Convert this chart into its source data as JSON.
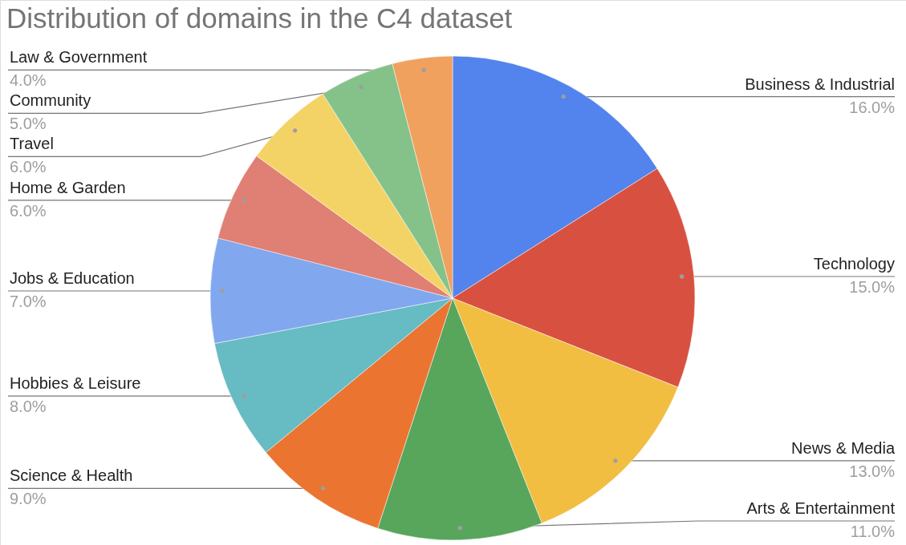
{
  "chart_data": {
    "type": "pie",
    "title": "Distribution of domains in the C4 dataset",
    "categories": [
      "Business & Industrial",
      "Technology",
      "News & Media",
      "Arts & Entertainment",
      "Science & Health",
      "Hobbies & Leisure",
      "Jobs & Education",
      "Home & Garden",
      "Travel",
      "Community",
      "Law & Government"
    ],
    "values": [
      16,
      15,
      13,
      11,
      9,
      8,
      7,
      6,
      6,
      5,
      4
    ],
    "value_labels": [
      "16.0%",
      "15.0%",
      "13.0%",
      "11.0%",
      "9.0%",
      "8.0%",
      "7.0%",
      "6.0%",
      "6.0%",
      "5.0%",
      "4.0%"
    ],
    "colors": [
      "#5383ec",
      "#d85140",
      "#f1be42",
      "#58a55c",
      "#eb7530",
      "#67bbc2",
      "#81a7ef",
      "#e07f73",
      "#f4d366",
      "#85c28a",
      "#f0a15d"
    ]
  }
}
